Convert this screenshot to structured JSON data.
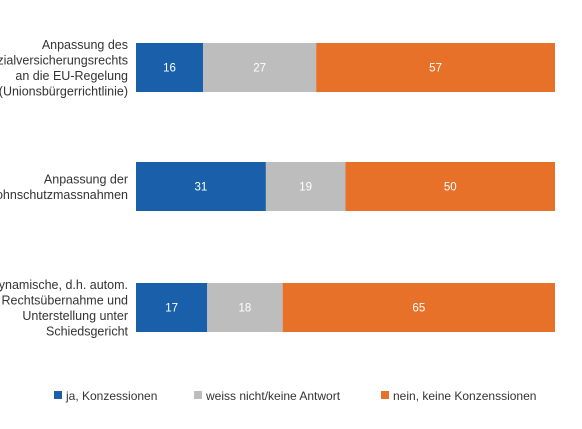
{
  "chart_data": {
    "type": "bar",
    "orientation": "horizontal",
    "stacked": true,
    "categories": [
      [
        "Anpassung des",
        "Sozialversicherungsrechts",
        "an die EU-Regelung",
        "(Unionsbürgerrichtlinie)"
      ],
      [
        "Anpassung der",
        "Lohnschutzmassnahmen"
      ],
      [
        "dynamische, d.h. autom.",
        "Rechtsübernahme und",
        "Unterstellung unter",
        "Schiedsgericht"
      ]
    ],
    "series": [
      {
        "name": "ja, Konzessionen",
        "color": "#1a5fa9",
        "values": [
          16,
          31,
          17
        ]
      },
      {
        "name": "weiss nicht/keine Antwort",
        "color": "#bdbdbd",
        "values": [
          27,
          19,
          18
        ]
      },
      {
        "name": "nein, keine Konzenssionen",
        "color": "#e8712a",
        "values": [
          57,
          50,
          65
        ]
      }
    ],
    "xlim": [
      0,
      100
    ],
    "grid": false,
    "legend": "bottom"
  }
}
